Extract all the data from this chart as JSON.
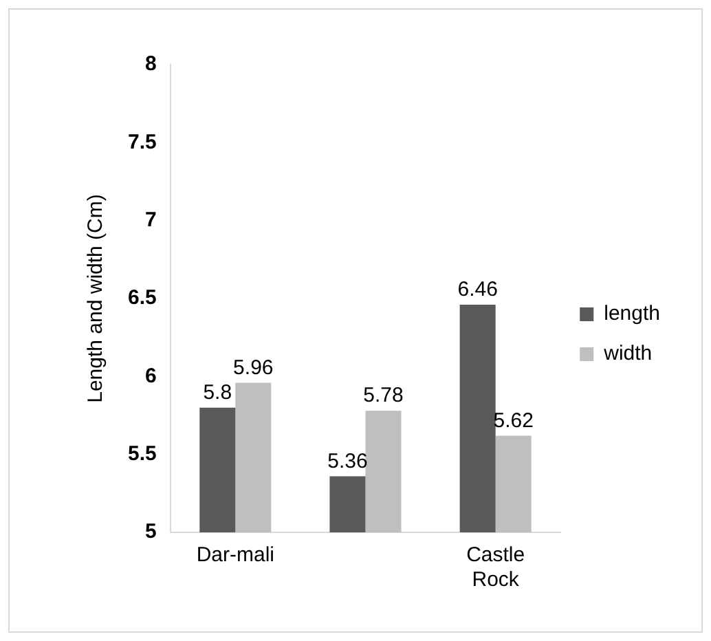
{
  "chart_data": {
    "type": "bar",
    "categories": [
      "Dar-mali",
      null,
      "Castle Rock"
    ],
    "series": [
      {
        "name": "length",
        "color": "#595959",
        "values": [
          5.8,
          5.36,
          6.46
        ]
      },
      {
        "name": "width",
        "color": "#bfbfbf",
        "values": [
          5.96,
          5.78,
          5.62
        ]
      }
    ],
    "ylabel": "Length and width (Cm)",
    "ylim": [
      5,
      8
    ],
    "yticks": [
      5,
      5.5,
      6,
      6.5,
      7,
      7.5,
      8
    ],
    "data_labels": true,
    "grid": false,
    "legend": "right"
  }
}
